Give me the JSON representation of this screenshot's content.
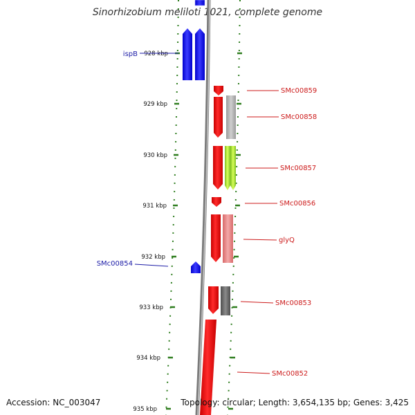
{
  "title": "Sinorhizobium meliloti 1021, complete genome",
  "footer": {
    "accession": "Accession: NC_003047",
    "summary": "Topology: circular; Length: 3,654,135 bp; Genes: 3,425"
  },
  "colors": {
    "tick": "#2e7d1e",
    "backbone": "#808080",
    "reverse_strand_gene": "#1a1aff",
    "forward_strand_gene": "#ff1a1a",
    "label_reverse": "#1a1aa6",
    "label_forward": "#cc1a1a"
  },
  "axis": {
    "unit": "kbp",
    "ticks": [
      "928 kbp",
      "929 kbp",
      "930 kbp",
      "931 kbp",
      "932 kbp",
      "933 kbp",
      "934 kbp",
      "935 kbp"
    ]
  },
  "genes": [
    {
      "label": "ispB",
      "strand": "reverse"
    },
    {
      "label": "SMc00859",
      "strand": "forward"
    },
    {
      "label": "SMc00858",
      "strand": "forward"
    },
    {
      "label": "SMc00857",
      "strand": "forward"
    },
    {
      "label": "SMc00856",
      "strand": "forward"
    },
    {
      "label": "glyQ",
      "strand": "forward"
    },
    {
      "label": "SMc00854",
      "strand": "reverse"
    },
    {
      "label": "SMc00853",
      "strand": "forward"
    },
    {
      "label": "SMc00852",
      "strand": "forward"
    }
  ]
}
